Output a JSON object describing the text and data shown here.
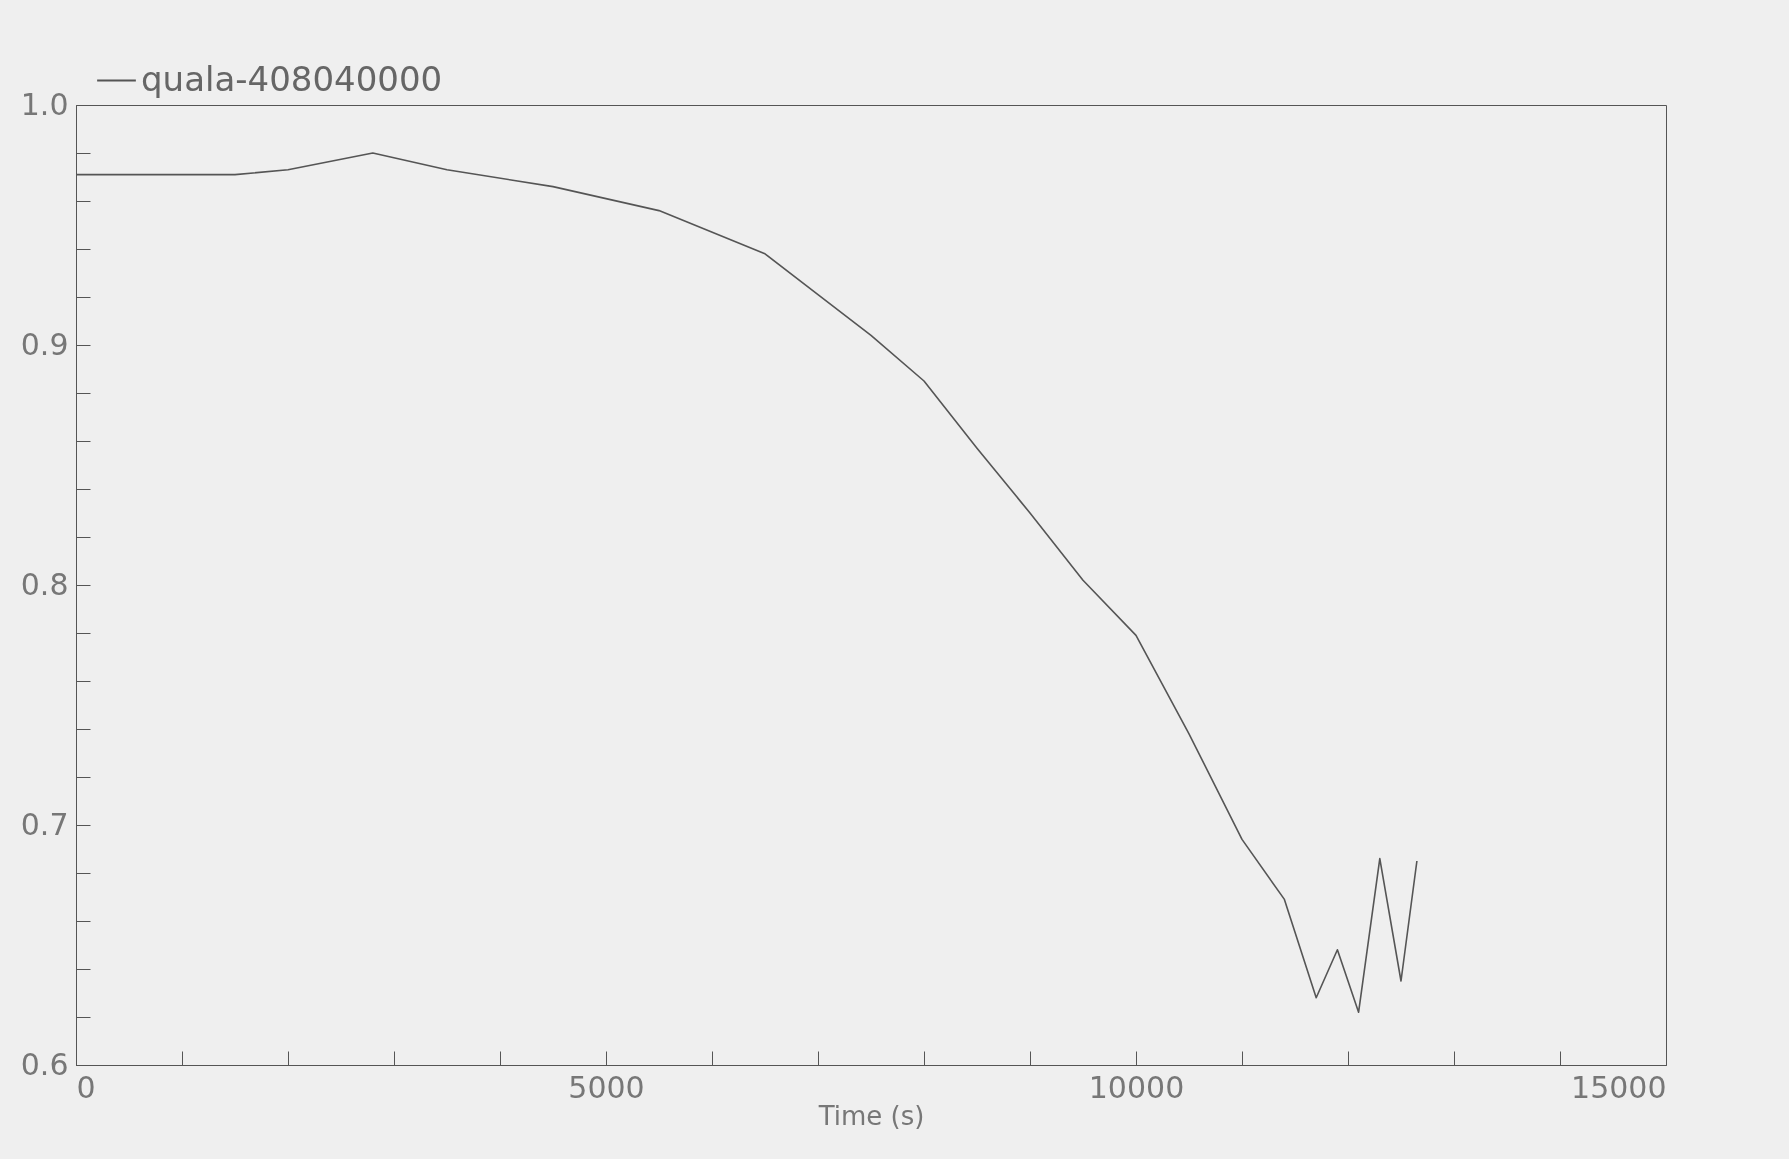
{
  "chart_data": {
    "type": "line",
    "xlabel": "Time (s)",
    "legend": "top left",
    "grid": false,
    "xlim": [
      0,
      15000
    ],
    "ylim": [
      0.6,
      1.0
    ],
    "xticks": [
      0,
      {
        "value": 1000,
        "label": null
      },
      {
        "value": 2000,
        "label": null
      },
      {
        "value": 3000,
        "label": null
      },
      {
        "value": 4000,
        "label": null
      },
      5000,
      {
        "value": 6000,
        "label": null
      },
      {
        "value": 7000,
        "label": null
      },
      {
        "value": 8000,
        "label": null
      },
      {
        "value": 9000,
        "label": null
      },
      10000,
      {
        "value": 11000,
        "label": null
      },
      {
        "value": 12000,
        "label": null
      },
      {
        "value": 13000,
        "label": null
      },
      {
        "value": 14000,
        "label": null
      },
      15000
    ],
    "yticks": [
      {
        "value": 0.6,
        "label": "0.6"
      },
      {
        "value": 0.62,
        "label": null
      },
      {
        "value": 0.64,
        "label": null
      },
      {
        "value": 0.66,
        "label": null
      },
      {
        "value": 0.68,
        "label": null
      },
      {
        "value": 0.7,
        "label": "0.7"
      },
      {
        "value": 0.72,
        "label": null
      },
      {
        "value": 0.74,
        "label": null
      },
      {
        "value": 0.76,
        "label": null
      },
      {
        "value": 0.78,
        "label": null
      },
      {
        "value": 0.8,
        "label": "0.8"
      },
      {
        "value": 0.82,
        "label": null
      },
      {
        "value": 0.84,
        "label": null
      },
      {
        "value": 0.86,
        "label": null
      },
      {
        "value": 0.88,
        "label": null
      },
      {
        "value": 0.9,
        "label": "0.9"
      },
      {
        "value": 0.92,
        "label": null
      },
      {
        "value": 0.94,
        "label": null
      },
      {
        "value": 0.96,
        "label": null
      },
      {
        "value": 0.98,
        "label": null
      },
      {
        "value": 1.0,
        "label": "1.0"
      }
    ],
    "x": [
      0,
      1500,
      2000,
      2800,
      3500,
      4500,
      5500,
      6500,
      7000,
      7500,
      8000,
      8500,
      9000,
      9500,
      10000,
      10500,
      11000,
      11400,
      11700,
      11900,
      12100,
      12300,
      12500,
      12650
    ],
    "series": [
      {
        "name": "quala-408040000",
        "color": "#555555",
        "values": [
          0.971,
          0.971,
          0.973,
          0.98,
          0.973,
          0.966,
          0.956,
          0.938,
          0.921,
          0.904,
          0.885,
          0.857,
          0.83,
          0.802,
          0.779,
          0.738,
          0.694,
          0.669,
          0.628,
          0.648,
          0.622,
          0.686,
          0.635,
          0.685
        ]
      }
    ]
  }
}
